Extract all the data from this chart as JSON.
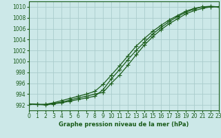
{
  "xlabel": "Graphe pression niveau de la mer (hPa)",
  "bg_color": "#cce8e8",
  "grid_color": "#aacccc",
  "line_color": "#1a5c1a",
  "xlim": [
    0,
    23
  ],
  "ylim": [
    991,
    1011
  ],
  "yticks": [
    992,
    994,
    996,
    998,
    1000,
    1002,
    1004,
    1006,
    1008,
    1010
  ],
  "xticks": [
    0,
    1,
    2,
    3,
    4,
    5,
    6,
    7,
    8,
    9,
    10,
    11,
    12,
    13,
    14,
    15,
    16,
    17,
    18,
    19,
    20,
    21,
    22,
    23
  ],
  "series": [
    [
      992.2,
      992.1,
      992.1,
      992.4,
      992.8,
      993.2,
      993.6,
      994.0,
      994.5,
      995.8,
      997.5,
      999.2,
      1001.0,
      1002.8,
      1004.2,
      1005.5,
      1006.6,
      1007.6,
      1008.4,
      1009.2,
      1009.7,
      1010.0,
      1010.0,
      1010.0
    ],
    [
      992.2,
      992.1,
      992.1,
      992.3,
      992.5,
      992.9,
      993.3,
      993.6,
      994.0,
      994.3,
      996.0,
      997.5,
      999.3,
      1001.2,
      1003.0,
      1004.5,
      1005.8,
      1006.9,
      1007.8,
      1008.7,
      1009.3,
      1009.7,
      1010.0,
      1010.0
    ],
    [
      992.2,
      992.1,
      992.0,
      992.2,
      992.4,
      992.7,
      993.0,
      993.3,
      993.6,
      994.8,
      996.8,
      998.5,
      1000.3,
      1002.0,
      1003.5,
      1005.0,
      1006.2,
      1007.3,
      1008.2,
      1009.0,
      1009.6,
      1010.0,
      1010.1,
      1010.0
    ]
  ],
  "series_markers": [
    "+",
    "+",
    "+"
  ],
  "figsize": [
    3.2,
    2.0
  ],
  "dpi": 100,
  "tick_labelsize": 5.5,
  "xlabel_fontsize": 6,
  "linewidth": 0.9,
  "markersize": 4,
  "markeredgewidth": 0.8
}
